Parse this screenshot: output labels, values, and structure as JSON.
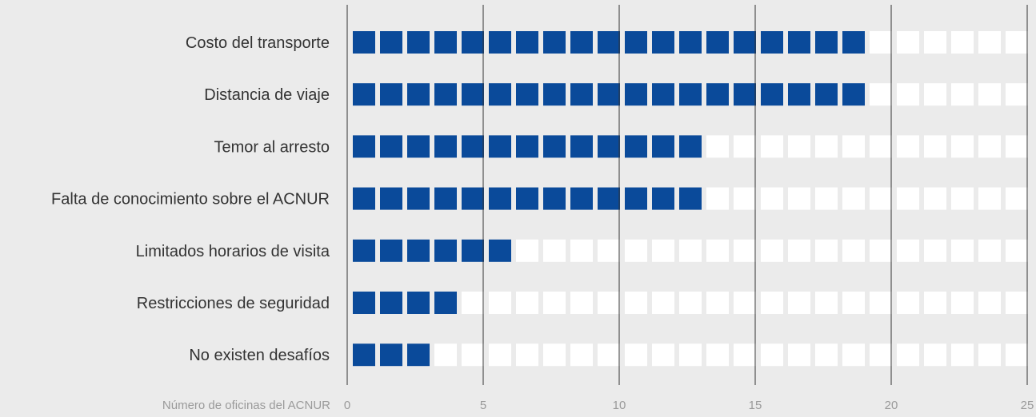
{
  "chart_data": {
    "type": "bar",
    "categories": [
      "Costo del transporte",
      "Distancia de viaje",
      "Temor al arresto",
      "Falta de conocimiento sobre el ACNUR",
      "Limitados horarios de visita",
      "Restricciones de seguridad",
      "No existen desafíos"
    ],
    "values": [
      19,
      19,
      13,
      13,
      6,
      4,
      3
    ],
    "xlabel": "Número de oficinas del ACNUR",
    "ylabel": "",
    "xlim": [
      0,
      25
    ],
    "xticks": [
      "0",
      "5",
      "10",
      "15",
      "20",
      "25"
    ],
    "orientation": "horizontal",
    "style": "unit squares (1 square = 1 office)",
    "grid": "vertical lines at each tick",
    "colors": {
      "filled": "#0a4a9a",
      "empty": "#ffffff",
      "background": "#ebebeb",
      "gridline": "#333333"
    }
  }
}
